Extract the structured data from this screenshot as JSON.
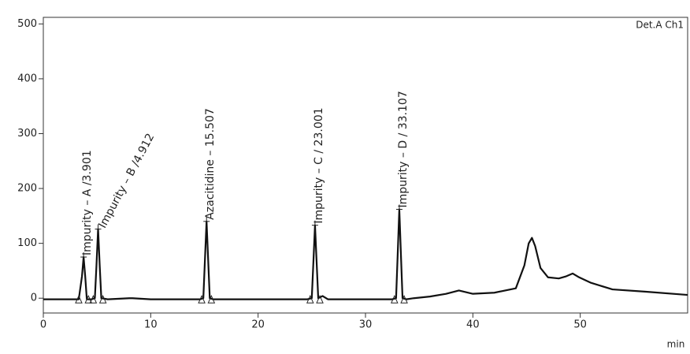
{
  "chart_data": {
    "type": "line",
    "detector_label": "Det.A Ch1",
    "x_label": "min",
    "x": [
      0,
      2,
      3.3,
      3.6,
      3.75,
      3.9,
      4.05,
      4.2,
      4.5,
      4.8,
      4.95,
      5.1,
      5.25,
      5.4,
      6,
      8,
      8.3,
      10,
      14.6,
      14.9,
      15.05,
      15.2,
      15.35,
      15.5,
      15.8,
      20,
      24.6,
      25.0,
      25.15,
      25.3,
      25.45,
      25.6,
      26,
      26.5,
      30,
      32.5,
      32.85,
      33.0,
      33.15,
      33.3,
      33.45,
      33.8,
      34.5,
      36,
      37.5,
      38.7,
      40,
      42,
      44,
      44.8,
      45.2,
      45.5,
      45.8,
      46.3,
      47,
      48,
      48.7,
      49.3,
      49.9,
      51,
      53,
      56,
      60
    ],
    "series": [
      {
        "color": "#111111",
        "values": [
          -2,
          -2,
          -2,
          40,
          75,
          40,
          -2,
          -2,
          -2,
          0,
          60,
          126,
          60,
          0,
          -2,
          0,
          0,
          -2,
          -2,
          0,
          70,
          140,
          70,
          0,
          -2,
          -2,
          -2,
          0,
          66,
          133,
          66,
          0,
          4,
          -2,
          -2,
          -2,
          0,
          80,
          162,
          80,
          0,
          -2,
          0,
          3,
          8,
          14,
          8,
          10,
          18,
          60,
          100,
          110,
          95,
          55,
          38,
          36,
          40,
          45,
          38,
          28,
          16,
          12,
          6
        ]
      }
    ],
    "annotations": [
      {
        "text": "Impurity – A /3.901",
        "x": 3.75,
        "y": 75
      },
      {
        "text": "Impurity – B /4.912",
        "x": 5.1,
        "y": 126
      },
      {
        "text": "Azacitidine – 15.507",
        "x": 15.2,
        "y": 140
      },
      {
        "text": "Impurity – C / 23.001",
        "x": 25.3,
        "y": 133
      },
      {
        "text": "Impurity – D / 33.107",
        "x": 33.15,
        "y": 162
      }
    ],
    "xlim": [
      0,
      60
    ],
    "xticks": [
      0,
      10,
      20,
      30,
      40,
      50
    ],
    "ylim": [
      -27,
      512
    ],
    "yticks": [
      0,
      100,
      200,
      300,
      400,
      500
    ]
  }
}
